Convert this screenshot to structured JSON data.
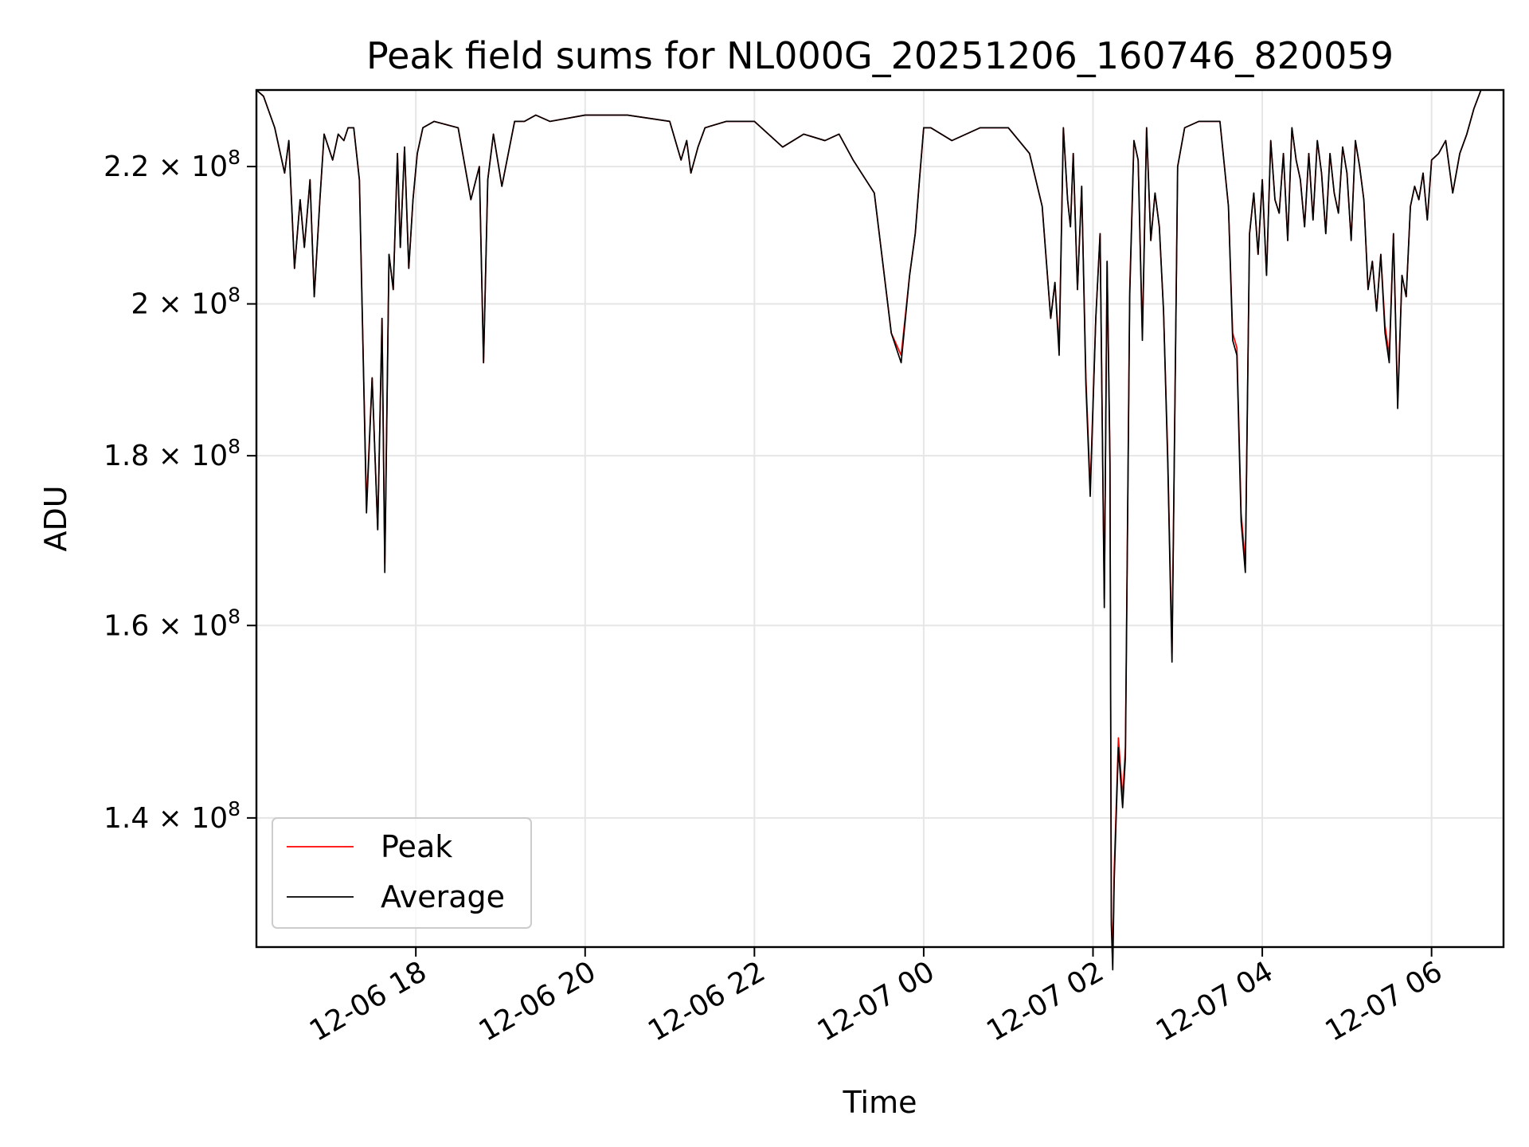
{
  "chart_data": {
    "type": "line",
    "title": "Peak field sums for NL000G_20251206_160746_820059",
    "xlabel": "Time",
    "ylabel": "ADU",
    "yscale": "log",
    "grid": true,
    "legend_position": "lower-left",
    "xlim": [
      "2025-12-06 16:07",
      "2025-12-07 06:51"
    ],
    "ylim": [
      128000000,
      232000000
    ],
    "x_ticks": [
      {
        "t": "2025-12-06 18:00",
        "label": "12-06 18"
      },
      {
        "t": "2025-12-06 20:00",
        "label": "12-06 20"
      },
      {
        "t": "2025-12-06 22:00",
        "label": "12-06 22"
      },
      {
        "t": "2025-12-07 00:00",
        "label": "12-07 00"
      },
      {
        "t": "2025-12-07 02:00",
        "label": "12-07 02"
      },
      {
        "t": "2025-12-07 04:00",
        "label": "12-07 04"
      },
      {
        "t": "2025-12-07 06:00",
        "label": "12-07 06"
      }
    ],
    "y_ticks": [
      {
        "value": 140000000,
        "mantissa": "1.4",
        "exponent": "8"
      },
      {
        "value": 160000000,
        "mantissa": "1.6",
        "exponent": "8"
      },
      {
        "value": 180000000,
        "mantissa": "1.8",
        "exponent": "8"
      },
      {
        "value": 200000000,
        "mantissa": "2",
        "exponent": "8"
      },
      {
        "value": 220000000,
        "mantissa": "2.2",
        "exponent": "8"
      }
    ],
    "times": [
      "2025-12-06 16:07",
      "2025-12-06 16:12",
      "2025-12-06 16:20",
      "2025-12-06 16:27",
      "2025-12-06 16:30",
      "2025-12-06 16:34",
      "2025-12-06 16:38",
      "2025-12-06 16:41",
      "2025-12-06 16:45",
      "2025-12-06 16:48",
      "2025-12-06 16:52",
      "2025-12-06 16:55",
      "2025-12-06 17:01",
      "2025-12-06 17:05",
      "2025-12-06 17:09",
      "2025-12-06 17:12",
      "2025-12-06 17:16",
      "2025-12-06 17:20",
      "2025-12-06 17:25",
      "2025-12-06 17:29",
      "2025-12-06 17:33",
      "2025-12-06 17:36",
      "2025-12-06 17:38",
      "2025-12-06 17:41",
      "2025-12-06 17:44",
      "2025-12-06 17:47",
      "2025-12-06 17:49",
      "2025-12-06 17:52",
      "2025-12-06 17:55",
      "2025-12-06 17:58",
      "2025-12-06 18:01",
      "2025-12-06 18:05",
      "2025-12-06 18:13",
      "2025-12-06 18:30",
      "2025-12-06 18:39",
      "2025-12-06 18:45",
      "2025-12-06 18:48",
      "2025-12-06 18:51",
      "2025-12-06 18:55",
      "2025-12-06 19:01",
      "2025-12-06 19:10",
      "2025-12-06 19:17",
      "2025-12-06 19:25",
      "2025-12-06 19:35",
      "2025-12-06 20:00",
      "2025-12-06 20:30",
      "2025-12-06 21:00",
      "2025-12-06 21:08",
      "2025-12-06 21:12",
      "2025-12-06 21:15",
      "2025-12-06 21:20",
      "2025-12-06 21:25",
      "2025-12-06 21:40",
      "2025-12-06 22:00",
      "2025-12-06 22:20",
      "2025-12-06 22:35",
      "2025-12-06 22:50",
      "2025-12-06 23:00",
      "2025-12-06 23:10",
      "2025-12-06 23:25",
      "2025-12-06 23:37",
      "2025-12-06 23:44",
      "2025-12-06 23:50",
      "2025-12-06 23:54",
      "2025-12-06 23:57",
      "2025-12-07 00:00",
      "2025-12-07 00:05",
      "2025-12-07 00:20",
      "2025-12-07 00:40",
      "2025-12-07 01:00",
      "2025-12-07 01:15",
      "2025-12-07 01:24",
      "2025-12-07 01:30",
      "2025-12-07 01:33",
      "2025-12-07 01:36",
      "2025-12-07 01:39",
      "2025-12-07 01:42",
      "2025-12-07 01:44",
      "2025-12-07 01:46",
      "2025-12-07 01:49",
      "2025-12-07 01:52",
      "2025-12-07 01:55",
      "2025-12-07 01:58",
      "2025-12-07 02:02",
      "2025-12-07 02:05",
      "2025-12-07 02:08",
      "2025-12-07 02:10",
      "2025-12-07 02:12",
      "2025-12-07 02:13",
      "2025-12-07 02:14",
      "2025-12-07 02:15",
      "2025-12-07 02:18",
      "2025-12-07 02:21",
      "2025-12-07 02:23",
      "2025-12-07 02:26",
      "2025-12-07 02:29",
      "2025-12-07 02:32",
      "2025-12-07 02:35",
      "2025-12-07 02:38",
      "2025-12-07 02:41",
      "2025-12-07 02:44",
      "2025-12-07 02:47",
      "2025-12-07 02:50",
      "2025-12-07 02:53",
      "2025-12-07 02:56",
      "2025-12-07 03:00",
      "2025-12-07 03:05",
      "2025-12-07 03:15",
      "2025-12-07 03:30",
      "2025-12-07 03:36",
      "2025-12-07 03:39",
      "2025-12-07 03:42",
      "2025-12-07 03:45",
      "2025-12-07 03:48",
      "2025-12-07 03:51",
      "2025-12-07 03:54",
      "2025-12-07 03:57",
      "2025-12-07 04:00",
      "2025-12-07 04:03",
      "2025-12-07 04:06",
      "2025-12-07 04:09",
      "2025-12-07 04:12",
      "2025-12-07 04:15",
      "2025-12-07 04:18",
      "2025-12-07 04:21",
      "2025-12-07 04:24",
      "2025-12-07 04:27",
      "2025-12-07 04:30",
      "2025-12-07 04:33",
      "2025-12-07 04:36",
      "2025-12-07 04:39",
      "2025-12-07 04:42",
      "2025-12-07 04:45",
      "2025-12-07 04:48",
      "2025-12-07 04:51",
      "2025-12-07 04:54",
      "2025-12-07 04:57",
      "2025-12-07 05:00",
      "2025-12-07 05:03",
      "2025-12-07 05:06",
      "2025-12-07 05:09",
      "2025-12-07 05:12",
      "2025-12-07 05:15",
      "2025-12-07 05:18",
      "2025-12-07 05:21",
      "2025-12-07 05:24",
      "2025-12-07 05:27",
      "2025-12-07 05:30",
      "2025-12-07 05:33",
      "2025-12-07 05:36",
      "2025-12-07 05:39",
      "2025-12-07 05:42",
      "2025-12-07 05:45",
      "2025-12-07 05:48",
      "2025-12-07 05:51",
      "2025-12-07 05:54",
      "2025-12-07 05:57",
      "2025-12-07 06:00",
      "2025-12-07 06:05",
      "2025-12-07 06:10",
      "2025-12-07 06:15",
      "2025-12-07 06:20",
      "2025-12-07 06:25",
      "2025-12-07 06:30",
      "2025-12-07 06:35",
      "2025-12-07 06:40",
      "2025-12-07 06:45"
    ],
    "series": [
      {
        "name": "Peak",
        "color": "#ff0000",
        "values": [
          232000000,
          231000000,
          226000000,
          219000000,
          224000000,
          205000000,
          215000000,
          208000000,
          218000000,
          201000000,
          215000000,
          225000000,
          221000000,
          225000000,
          224000000,
          226000000,
          226000000,
          218000000,
          174000000,
          190000000,
          171000000,
          198000000,
          167000000,
          207000000,
          202000000,
          222000000,
          208000000,
          223000000,
          205000000,
          215000000,
          222000000,
          226000000,
          227000000,
          226000000,
          215000000,
          220000000,
          192000000,
          218000000,
          225000000,
          217000000,
          227000000,
          227000000,
          228000000,
          227000000,
          228000000,
          228000000,
          227000000,
          221000000,
          224000000,
          219000000,
          223000000,
          226000000,
          227000000,
          227000000,
          223000000,
          225000000,
          224000000,
          225000000,
          221000000,
          216000000,
          196000000,
          193000000,
          204000000,
          210000000,
          218000000,
          226000000,
          226000000,
          224000000,
          226000000,
          226000000,
          222000000,
          214000000,
          198000000,
          203000000,
          194000000,
          226000000,
          215000000,
          211000000,
          222000000,
          202000000,
          217000000,
          190000000,
          176000000,
          198000000,
          210000000,
          163000000,
          206000000,
          180000000,
          131000000,
          127000000,
          135000000,
          148000000,
          142000000,
          147000000,
          202000000,
          224000000,
          221000000,
          196000000,
          226000000,
          209000000,
          216000000,
          211000000,
          199000000,
          180000000,
          157000000,
          220000000,
          226000000,
          227000000,
          227000000,
          214000000,
          196000000,
          194000000,
          173000000,
          167000000,
          210000000,
          216000000,
          207000000,
          218000000,
          204000000,
          224000000,
          215000000,
          213000000,
          222000000,
          209000000,
          226000000,
          221000000,
          218000000,
          211000000,
          222000000,
          212000000,
          224000000,
          219000000,
          210000000,
          222000000,
          216000000,
          213000000,
          223000000,
          219000000,
          209000000,
          224000000,
          220000000,
          215000000,
          202000000,
          206000000,
          199000000,
          207000000,
          197000000,
          193000000,
          210000000,
          187000000,
          204000000,
          201000000,
          214000000,
          217000000,
          215000000,
          219000000,
          212000000,
          221000000,
          222000000,
          224000000,
          216000000,
          222000000,
          225000000,
          229000000,
          232000000,
          232000000,
          232000000
        ]
      },
      {
        "name": "Average",
        "color": "#000000",
        "values": [
          232000000,
          231000000,
          226000000,
          219000000,
          224000000,
          205000000,
          215000000,
          208000000,
          218000000,
          201000000,
          215000000,
          225000000,
          221000000,
          225000000,
          224000000,
          226000000,
          226000000,
          218000000,
          173000000,
          190000000,
          171000000,
          198000000,
          166000000,
          207000000,
          202000000,
          222000000,
          208000000,
          223000000,
          205000000,
          215000000,
          222000000,
          226000000,
          227000000,
          226000000,
          215000000,
          220000000,
          192000000,
          218000000,
          225000000,
          217000000,
          227000000,
          227000000,
          228000000,
          227000000,
          228000000,
          228000000,
          227000000,
          221000000,
          224000000,
          219000000,
          223000000,
          226000000,
          227000000,
          227000000,
          223000000,
          225000000,
          224000000,
          225000000,
          221000000,
          216000000,
          196000000,
          192000000,
          204000000,
          210000000,
          218000000,
          226000000,
          226000000,
          224000000,
          226000000,
          226000000,
          222000000,
          214000000,
          198000000,
          203000000,
          193000000,
          226000000,
          215000000,
          211000000,
          222000000,
          202000000,
          217000000,
          189000000,
          175000000,
          198000000,
          210000000,
          162000000,
          206000000,
          179000000,
          130000000,
          126000000,
          134000000,
          147000000,
          141000000,
          146000000,
          201000000,
          224000000,
          221000000,
          195000000,
          226000000,
          209000000,
          216000000,
          211000000,
          199000000,
          179000000,
          156000000,
          220000000,
          226000000,
          227000000,
          227000000,
          214000000,
          195000000,
          193000000,
          172000000,
          166000000,
          210000000,
          216000000,
          207000000,
          218000000,
          204000000,
          224000000,
          215000000,
          213000000,
          222000000,
          209000000,
          226000000,
          221000000,
          218000000,
          211000000,
          222000000,
          212000000,
          224000000,
          219000000,
          210000000,
          222000000,
          216000000,
          213000000,
          223000000,
          219000000,
          209000000,
          224000000,
          220000000,
          215000000,
          202000000,
          206000000,
          199000000,
          207000000,
          196000000,
          192000000,
          210000000,
          186000000,
          204000000,
          201000000,
          214000000,
          217000000,
          215000000,
          219000000,
          212000000,
          221000000,
          222000000,
          224000000,
          216000000,
          222000000,
          225000000,
          229000000,
          232000000,
          232000000,
          232000000
        ]
      }
    ]
  }
}
